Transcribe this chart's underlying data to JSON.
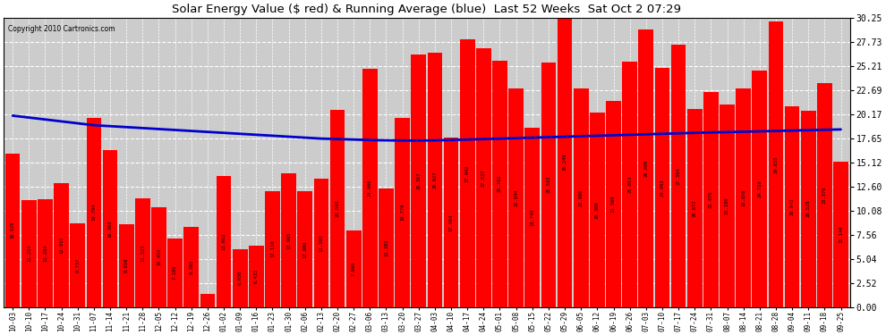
{
  "title": "Solar Energy Value ($ red) & Running Average (blue)  Last 52 Weeks  Sat Oct 2 07:29",
  "copyright": "Copyright 2010 Cartronics.com",
  "bar_color": "#ff0000",
  "line_color": "#0000cc",
  "background_color": "#ffffff",
  "plot_bg_color": "#cccccc",
  "ylim": [
    0.0,
    30.25
  ],
  "yticks": [
    0.0,
    2.52,
    5.04,
    7.56,
    10.08,
    12.6,
    15.12,
    17.65,
    20.17,
    22.69,
    25.21,
    27.73,
    30.25
  ],
  "labels": [
    "10-03",
    "10-10",
    "10-17",
    "10-24",
    "10-31",
    "11-07",
    "11-14",
    "11-21",
    "11-28",
    "12-05",
    "12-12",
    "12-19",
    "12-26",
    "01-02",
    "01-09",
    "01-16",
    "01-23",
    "01-30",
    "02-06",
    "02-13",
    "02-20",
    "02-27",
    "03-06",
    "03-13",
    "03-20",
    "03-27",
    "04-03",
    "04-10",
    "04-17",
    "04-24",
    "05-01",
    "05-08",
    "05-15",
    "05-22",
    "05-29",
    "06-05",
    "06-12",
    "06-19",
    "06-26",
    "07-03",
    "07-10",
    "07-17",
    "07-24",
    "07-31",
    "08-07",
    "08-14",
    "08-21",
    "08-28",
    "09-04",
    "09-11",
    "09-18",
    "09-25"
  ],
  "values": [
    16.029,
    11.204,
    11.284,
    12.915,
    8.737,
    19.794,
    16.368,
    8.658,
    11.323,
    10.459,
    7.189,
    8.383,
    1.364,
    13.662,
    6.03,
    6.433,
    12.13,
    13.965,
    12.08,
    13.39,
    20.643,
    7.995,
    24.906,
    12.382,
    19.776,
    26.367,
    26.627,
    17.664,
    27.942,
    27.027,
    25.782,
    22.844,
    18.743,
    25.582,
    30.249,
    22.8,
    20.3,
    21.56,
    25.651,
    29.0,
    24.993,
    27.394,
    20.672,
    22.47,
    21.18,
    22.858,
    24.719,
    29.835,
    20.941,
    20.528,
    23.376,
    15.144
  ],
  "running_avg": [
    20.0,
    19.8,
    19.6,
    19.4,
    19.2,
    19.0,
    18.9,
    18.8,
    18.7,
    18.6,
    18.5,
    18.4,
    18.3,
    18.2,
    18.1,
    18.0,
    17.9,
    17.8,
    17.7,
    17.6,
    17.55,
    17.5,
    17.45,
    17.42,
    17.4,
    17.4,
    17.42,
    17.45,
    17.5,
    17.55,
    17.6,
    17.65,
    17.7,
    17.75,
    17.8,
    17.85,
    17.9,
    17.95,
    18.0,
    18.05,
    18.1,
    18.15,
    18.2,
    18.25,
    18.28,
    18.32,
    18.36,
    18.4,
    18.44,
    18.48,
    18.52,
    18.56
  ]
}
